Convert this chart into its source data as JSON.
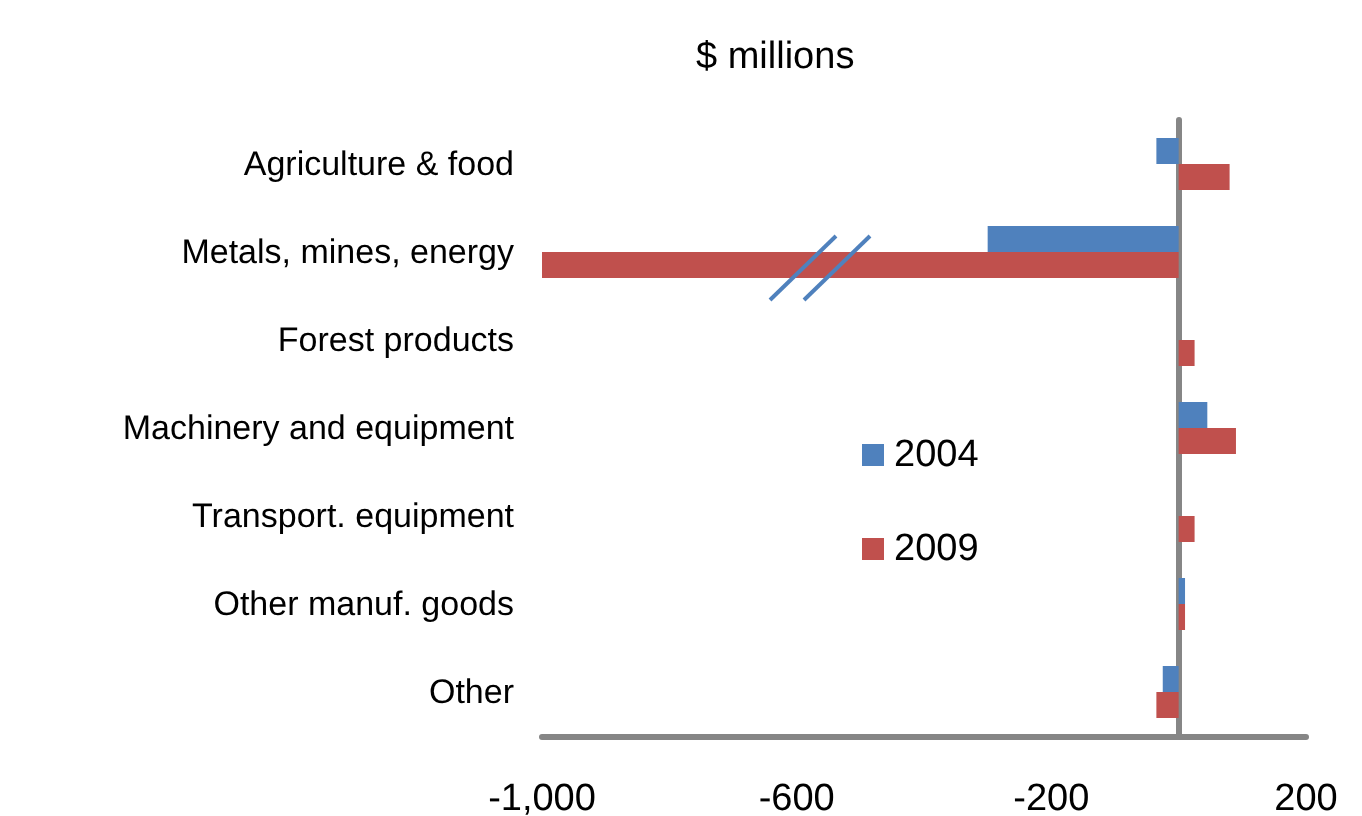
{
  "chart_data": {
    "type": "bar",
    "orientation": "horizontal",
    "title": "$ millions",
    "categories": [
      "Agriculture & food",
      "Metals, mines, energy",
      "Forest products",
      "Machinery and equipment",
      "Transport. equipment",
      "Other manuf. goods",
      "Other"
    ],
    "series": [
      {
        "name": "2004",
        "color": "#4f81bd",
        "values": [
          -35,
          -300,
          0,
          45,
          0,
          10,
          -25
        ]
      },
      {
        "name": "2009",
        "color": "#c0504d",
        "values": [
          80,
          -1000,
          25,
          90,
          25,
          10,
          -35
        ]
      }
    ],
    "xlim": [
      -1000,
      200
    ],
    "xticks": [
      {
        "value": -1000,
        "label": "-1,000"
      },
      -600,
      -200,
      200
    ],
    "grid": false,
    "legend": "center"
  }
}
